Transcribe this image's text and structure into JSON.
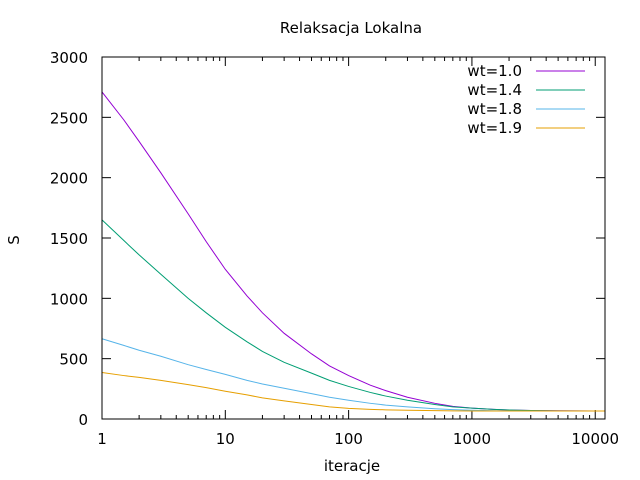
{
  "chart_data": {
    "type": "line",
    "title": "Relaksacja Lokalna",
    "xlabel": "iteracje",
    "ylabel": "S",
    "x_scale": "log",
    "xlim": [
      1,
      12000
    ],
    "ylim": [
      0,
      3000
    ],
    "x_ticks": [
      1,
      10,
      100,
      1000,
      10000
    ],
    "x_tick_labels": [
      "1",
      "10",
      "100",
      "1000",
      "10000"
    ],
    "y_ticks": [
      0,
      500,
      1000,
      1500,
      2000,
      2500,
      3000
    ],
    "y_tick_labels": [
      "0",
      "500",
      "1000",
      "1500",
      "2000",
      "2500",
      "3000"
    ],
    "grid": false,
    "legend_position": "top-right",
    "series": [
      {
        "name": "wt=1.0",
        "color": "#9400d3",
        "x": [
          1,
          1.5,
          2,
          3,
          5,
          7,
          10,
          15,
          20,
          30,
          50,
          70,
          100,
          150,
          200,
          300,
          500,
          700,
          1000,
          1500,
          2000,
          3000,
          5000,
          7000,
          10000,
          12000
        ],
        "y": [
          2710,
          2480,
          2300,
          2040,
          1700,
          1470,
          1240,
          1020,
          880,
          710,
          540,
          440,
          360,
          280,
          235,
          180,
          130,
          105,
          90,
          80,
          75,
          70,
          68,
          67,
          66,
          66
        ]
      },
      {
        "name": "wt=1.4",
        "color": "#009e73",
        "x": [
          1,
          1.5,
          2,
          3,
          5,
          7,
          10,
          15,
          20,
          30,
          50,
          70,
          100,
          150,
          200,
          300,
          500,
          700,
          1000,
          1500,
          2000,
          3000,
          5000,
          10000,
          12000
        ],
        "y": [
          1650,
          1480,
          1360,
          1200,
          1000,
          880,
          760,
          640,
          560,
          470,
          380,
          320,
          270,
          220,
          190,
          155,
          120,
          100,
          90,
          80,
          75,
          70,
          67,
          66,
          66
        ]
      },
      {
        "name": "wt=1.8",
        "color": "#56b4e9",
        "x": [
          1,
          1.5,
          2,
          3,
          5,
          7,
          10,
          15,
          20,
          30,
          50,
          70,
          100,
          150,
          200,
          300,
          500,
          700,
          1000,
          1500,
          2000,
          3000,
          5000,
          12000
        ],
        "y": [
          665,
          610,
          570,
          520,
          450,
          410,
          370,
          320,
          290,
          255,
          210,
          180,
          155,
          130,
          115,
          100,
          85,
          78,
          72,
          68,
          67,
          66,
          66,
          66
        ]
      },
      {
        "name": "wt=1.9",
        "color": "#e69f00",
        "x": [
          1,
          1.5,
          2,
          3,
          5,
          7,
          10,
          15,
          20,
          30,
          50,
          70,
          100,
          150,
          200,
          300,
          500,
          700,
          1000,
          2000,
          5000,
          12000
        ],
        "y": [
          385,
          360,
          345,
          320,
          285,
          260,
          230,
          200,
          175,
          150,
          120,
          100,
          88,
          80,
          76,
          72,
          69,
          67,
          66,
          66,
          66,
          66
        ]
      }
    ]
  }
}
